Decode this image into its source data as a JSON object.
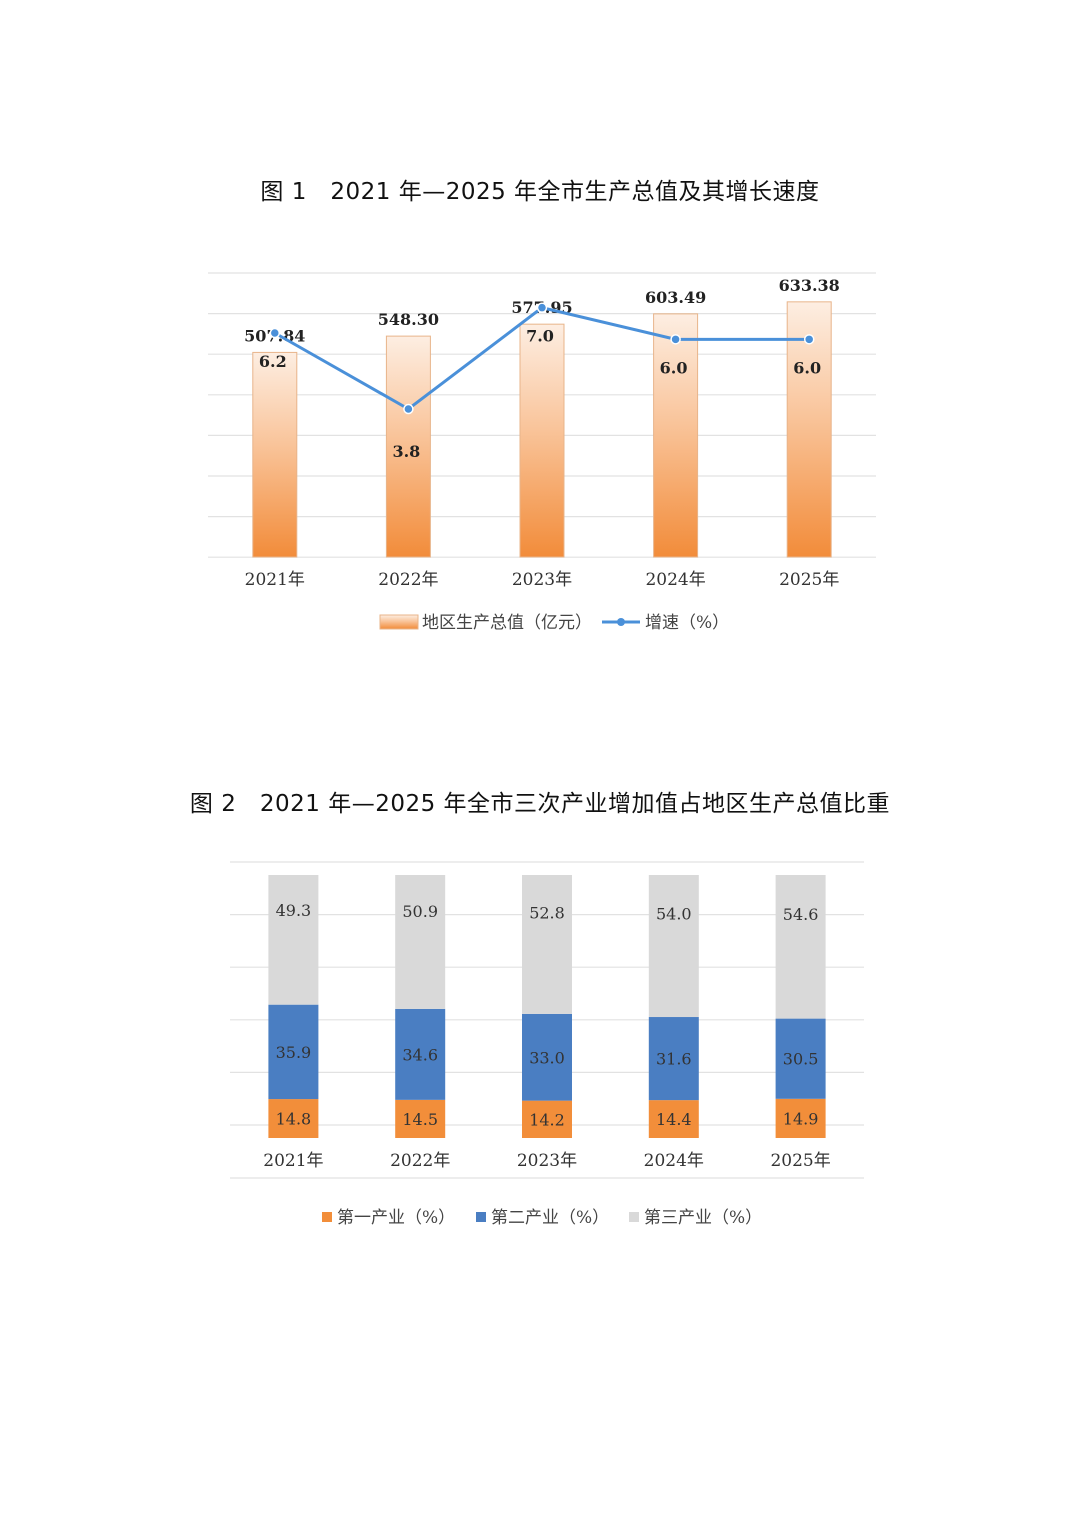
{
  "figure1": {
    "title": "图 1　2021 年—2025 年全市生产总值及其增长速度"
  },
  "figure2": {
    "title": "图 2　2021 年—2025 年全市三次产业增加值占地区生产总值比重"
  },
  "chart_data": [
    {
      "type": "bar",
      "title": "图 1　2021 年—2025 年全市生产总值及其增长速度",
      "categories": [
        "2021年",
        "2022年",
        "2023年",
        "2024年",
        "2025年"
      ],
      "series": [
        {
          "name": "地区生产总值（亿元）",
          "type": "bar",
          "values": [
            507.84,
            548.3,
            577.95,
            603.49,
            633.38
          ],
          "labels": [
            "507.84",
            "548.30",
            "577.95",
            "603.49",
            "633.38"
          ],
          "color": "#f4913e"
        },
        {
          "name": "增速（%）",
          "type": "line",
          "values": [
            6.2,
            3.8,
            7.0,
            6.0,
            6.0
          ],
          "labels": [
            "6.2",
            "3.8",
            "7.0",
            "6.0",
            "6.0"
          ],
          "color": "#4a90d9"
        }
      ],
      "legend": "bottom",
      "grid": true
    },
    {
      "type": "bar",
      "stacked": true,
      "title": "图 2　2021 年—2025 年全市三次产业增加值占地区生产总值比重",
      "categories": [
        "2021年",
        "2022年",
        "2023年",
        "2024年",
        "2025年"
      ],
      "series": [
        {
          "name": "第一产业（%）",
          "values": [
            14.8,
            14.5,
            14.2,
            14.4,
            14.9
          ],
          "labels": [
            "14.8",
            "14.5",
            "14.2",
            "14.4",
            "14.9"
          ],
          "color": "#f28e3a"
        },
        {
          "name": "第二产业（%）",
          "values": [
            35.9,
            34.6,
            33.0,
            31.6,
            30.5
          ],
          "labels": [
            "35.9",
            "34.6",
            "33.0",
            "31.6",
            "30.5"
          ],
          "color": "#4a7ec2"
        },
        {
          "name": "第三产业（%）",
          "values": [
            49.3,
            50.9,
            52.8,
            54.0,
            54.6
          ],
          "labels": [
            "49.3",
            "50.9",
            "52.8",
            "54.0",
            "54.6"
          ],
          "color": "#d9d9d9"
        }
      ],
      "ylim": [
        0,
        100
      ],
      "legend": "bottom",
      "grid": true
    }
  ]
}
